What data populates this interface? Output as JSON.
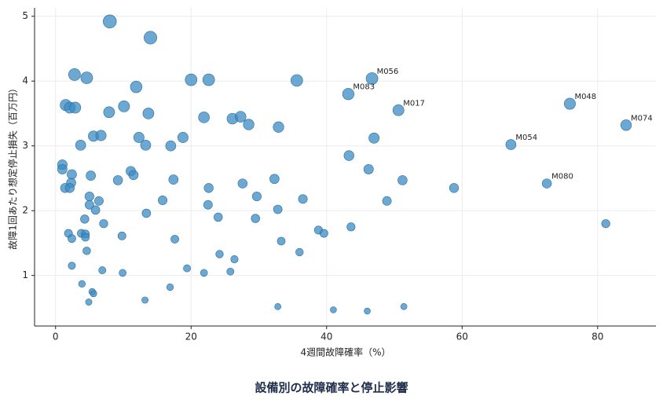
{
  "chart_data": {
    "type": "scatter",
    "title": "設備別の故障確率と停止影響",
    "xlabel": "4週間故障確率（%）",
    "ylabel": "故障1回あたり想定停止損失（百万円）",
    "xlim": [
      -3.1,
      88.6
    ],
    "ylim": [
      0.22,
      5.13
    ],
    "xticks": [
      0,
      20,
      40,
      60,
      80
    ],
    "yticks": [
      1,
      2,
      3,
      4,
      5
    ],
    "grid": true,
    "color": "#3b8bc2",
    "x": [
      46.7,
      43.2,
      50.6,
      75.9,
      84.2,
      67.2,
      72.5,
      8.0,
      14.0,
      2.8,
      4.6,
      20.0,
      22.6,
      35.6,
      11.9,
      1.5,
      2.1,
      2.9,
      10.1,
      7.9,
      13.7,
      21.9,
      26.1,
      27.3,
      28.5,
      32.9,
      5.6,
      6.7,
      12.3,
      18.8,
      47.0,
      3.7,
      13.3,
      17.0,
      43.3,
      1.0,
      1.0,
      11.1,
      11.5,
      2.4,
      5.2,
      46.2,
      9.2,
      17.4,
      32.3,
      51.2,
      2.3,
      1.4,
      2.1,
      22.6,
      27.6,
      58.8,
      5.0,
      29.7,
      6.4,
      15.8,
      36.5,
      48.9,
      5.0,
      22.5,
      5.9,
      32.8,
      13.4,
      24.0,
      29.5,
      4.3,
      7.1,
      43.6,
      81.2,
      38.8,
      39.6,
      1.9,
      3.8,
      4.4,
      4.4,
      9.8,
      2.4,
      17.6,
      33.3,
      4.6,
      36.0,
      24.2,
      26.4,
      2.4,
      19.4,
      6.9,
      9.9,
      25.8,
      21.9,
      3.9,
      16.9,
      5.4,
      5.6,
      13.2,
      4.9,
      32.8,
      51.4,
      41.0,
      46.0
    ],
    "values": [
      4.04,
      3.8,
      3.55,
      3.65,
      3.32,
      3.02,
      2.42,
      4.92,
      4.67,
      4.1,
      4.05,
      4.02,
      4.02,
      4.01,
      3.91,
      3.63,
      3.59,
      3.59,
      3.61,
      3.52,
      3.5,
      3.44,
      3.42,
      3.45,
      3.33,
      3.29,
      3.15,
      3.16,
      3.13,
      3.13,
      3.12,
      3.01,
      3.01,
      3.0,
      2.85,
      2.71,
      2.64,
      2.61,
      2.55,
      2.56,
      2.54,
      2.64,
      2.47,
      2.48,
      2.49,
      2.47,
      2.43,
      2.35,
      2.35,
      2.35,
      2.42,
      2.35,
      2.22,
      2.22,
      2.15,
      2.16,
      2.18,
      2.15,
      2.09,
      2.09,
      2.01,
      2.02,
      1.96,
      1.9,
      1.88,
      1.87,
      1.8,
      1.75,
      1.8,
      1.7,
      1.65,
      1.65,
      1.65,
      1.64,
      1.59,
      1.61,
      1.57,
      1.56,
      1.53,
      1.38,
      1.36,
      1.33,
      1.25,
      1.15,
      1.11,
      1.08,
      1.04,
      1.06,
      1.04,
      0.87,
      0.82,
      0.75,
      0.72,
      0.62,
      0.59,
      0.52,
      0.52,
      0.47,
      0.45
    ],
    "labels": [
      "M056",
      "M083",
      "M017",
      "M048",
      "M074",
      "M054",
      "M080",
      null,
      null,
      null,
      null,
      null,
      null,
      null,
      null,
      null,
      null,
      null,
      null,
      null,
      null,
      null,
      null,
      null,
      null,
      null,
      null,
      null,
      null,
      null,
      null,
      null,
      null,
      null,
      null,
      null,
      null,
      null,
      null,
      null,
      null,
      null,
      null,
      null,
      null,
      null,
      null,
      null,
      null,
      null,
      null,
      null,
      null,
      null,
      null,
      null,
      null,
      null,
      null,
      null,
      null,
      null,
      null,
      null,
      null,
      null,
      null,
      null,
      null,
      null,
      null,
      null,
      null,
      null,
      null,
      null,
      null,
      null,
      null,
      null,
      null,
      null,
      null,
      null,
      null,
      null,
      null,
      null,
      null,
      null,
      null,
      null,
      null,
      null,
      null,
      null,
      null,
      null,
      null
    ]
  }
}
